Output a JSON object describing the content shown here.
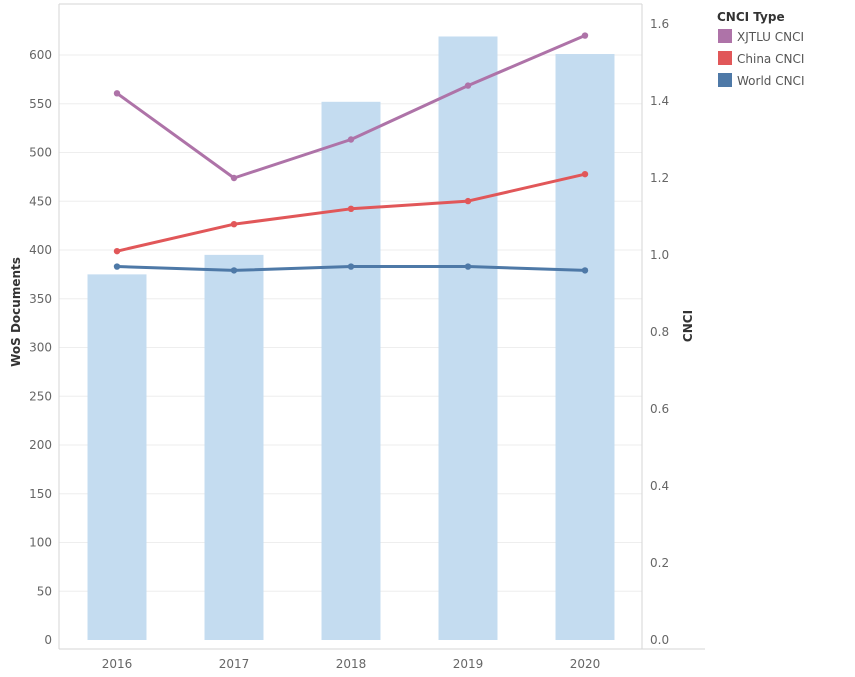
{
  "chart_data": {
    "type": "bar-line-combo",
    "categories": [
      "2016",
      "2017",
      "2018",
      "2019",
      "2020"
    ],
    "bar_series": {
      "axis": "left",
      "color": "#c4dcf0",
      "values": [
        375,
        395,
        552,
        619,
        601
      ]
    },
    "line_series": [
      {
        "name": "XJTLU CNCI",
        "color": "#ae73a8",
        "values": [
          1.42,
          1.2,
          1.3,
          1.44,
          1.57
        ]
      },
      {
        "name": "China CNCI",
        "color": "#e15759",
        "values": [
          1.01,
          1.08,
          1.12,
          1.14,
          1.21
        ]
      },
      {
        "name": "World CNCI",
        "color": "#4e79a7",
        "values": [
          0.97,
          0.96,
          0.97,
          0.97,
          0.96
        ]
      }
    ],
    "left_axis": {
      "label": "WoS Documents",
      "ylim": [
        0,
        640
      ],
      "ticks": [
        0,
        50,
        100,
        150,
        200,
        250,
        300,
        350,
        400,
        450,
        500,
        550,
        600
      ]
    },
    "right_axis": {
      "label": "CNCI",
      "ylim": [
        0,
        1.6
      ],
      "ticks": [
        "0.0",
        "0.2",
        "0.4",
        "0.6",
        "0.8",
        "1.0",
        "1.2",
        "1.4",
        "1.6"
      ]
    },
    "legend": {
      "title": "CNCI Type",
      "placement": "top-right"
    },
    "grid": true
  }
}
